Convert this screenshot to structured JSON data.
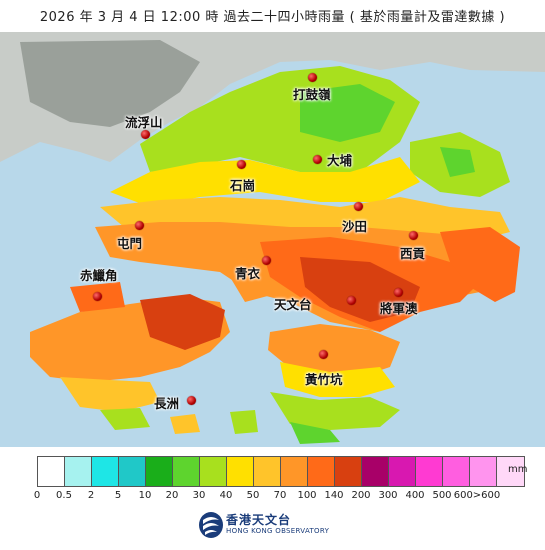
{
  "title": "2026 年  3  月 4   日 12:00  時   過去二十四小時雨量 ( 基於雨量計及雷達數據 )",
  "places": [
    {
      "id": "ta-kwu-ling",
      "label": "打鼓嶺"
    },
    {
      "id": "lau-fau-shan",
      "label": "流浮山"
    },
    {
      "id": "tai-po",
      "label": "大埔"
    },
    {
      "id": "shek-kong",
      "label": "石崗"
    },
    {
      "id": "sha-tin",
      "label": "沙田"
    },
    {
      "id": "tuen-mun",
      "label": "屯門"
    },
    {
      "id": "sai-kung",
      "label": "西貢"
    },
    {
      "id": "tsing-yi",
      "label": "青衣"
    },
    {
      "id": "chek-lap-kok",
      "label": "赤鱲角"
    },
    {
      "id": "tsim-sha-tsui",
      "label": "天文台"
    },
    {
      "id": "tseung-kwan-o",
      "label": "將軍澳"
    },
    {
      "id": "wong-chuk-hang",
      "label": "黃竹坑"
    },
    {
      "id": "cheung-chau",
      "label": "長洲"
    }
  ],
  "legend": {
    "unit": "mm",
    "colors": [
      "#ffffff",
      "#a6f2ef",
      "#1ee6e6",
      "#20c8c8",
      "#1aae1a",
      "#5ed42e",
      "#a8e01e",
      "#ffe000",
      "#ffc42a",
      "#ff9628",
      "#ff6a18",
      "#d84010",
      "#a80068",
      "#d818b0",
      "#ff3ad2",
      "#ff5ee0",
      "#ff94ee",
      "#ffd8f8"
    ],
    "ticks": [
      "0",
      "0.5",
      "2",
      "5",
      "10",
      "20",
      "30",
      "40",
      "50",
      "70",
      "100",
      "140",
      "200",
      "300",
      "400",
      "500",
      "600>600"
    ]
  },
  "logo": {
    "chinese": "香港天文台",
    "english": "HONG KONG OBSERVATORY"
  }
}
